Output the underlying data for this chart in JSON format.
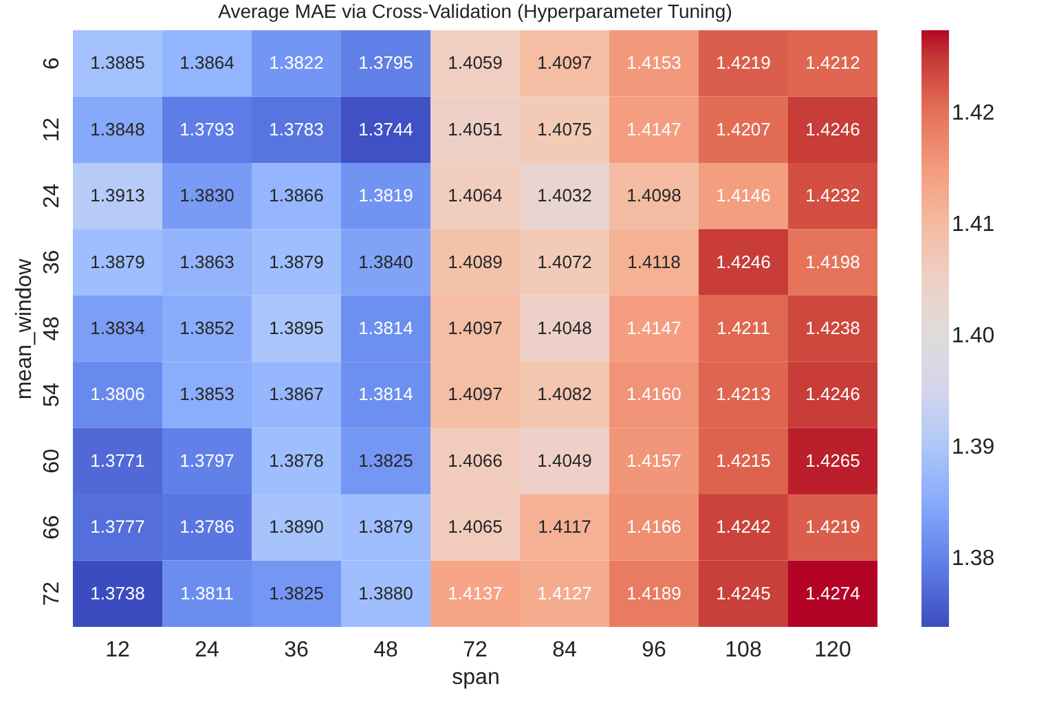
{
  "chart_data": {
    "type": "heatmap",
    "title": "Average MAE via Cross-Validation (Hyperparameter Tuning)",
    "xlabel": "span",
    "ylabel": "mean_window",
    "categories": [
      "12",
      "24",
      "36",
      "48",
      "72",
      "84",
      "96",
      "108",
      "120"
    ],
    "y_categories": [
      "6",
      "12",
      "24",
      "36",
      "48",
      "54",
      "60",
      "66",
      "72"
    ],
    "cells": [
      [
        1.3885,
        1.3864,
        1.3822,
        1.3795,
        1.4059,
        1.4097,
        1.4153,
        1.4219,
        1.4212
      ],
      [
        1.3848,
        1.3793,
        1.3783,
        1.3744,
        1.4051,
        1.4075,
        1.4147,
        1.4207,
        1.4246
      ],
      [
        1.3913,
        1.383,
        1.3866,
        1.3819,
        1.4064,
        1.4032,
        1.4098,
        1.4146,
        1.4232
      ],
      [
        1.3879,
        1.3863,
        1.3879,
        1.384,
        1.4089,
        1.4072,
        1.4118,
        1.4246,
        1.4198
      ],
      [
        1.3834,
        1.3852,
        1.3895,
        1.3814,
        1.4097,
        1.4048,
        1.4147,
        1.4211,
        1.4238
      ],
      [
        1.3806,
        1.3853,
        1.3867,
        1.3814,
        1.4097,
        1.4082,
        1.416,
        1.4213,
        1.4246
      ],
      [
        1.3771,
        1.3797,
        1.3878,
        1.3825,
        1.4066,
        1.4049,
        1.4157,
        1.4215,
        1.4265
      ],
      [
        1.3777,
        1.3786,
        1.389,
        1.3879,
        1.4065,
        1.4117,
        1.4166,
        1.4242,
        1.4219
      ],
      [
        1.3738,
        1.3811,
        1.3825,
        1.388,
        1.4137,
        1.4127,
        1.4189,
        1.4245,
        1.4274
      ]
    ],
    "cell_labels": [
      [
        "1.3885",
        "1.3864",
        "1.3822",
        "1.3795",
        "1.4059",
        "1.4097",
        "1.4153",
        "1.4219",
        "1.4212"
      ],
      [
        "1.3848",
        "1.3793",
        "1.3783",
        "1.3744",
        "1.4051",
        "1.4075",
        "1.4147",
        "1.4207",
        "1.4246"
      ],
      [
        "1.3913",
        "1.3830",
        "1.3866",
        "1.3819",
        "1.4064",
        "1.4032",
        "1.4098",
        "1.4146",
        "1.4232"
      ],
      [
        "1.3879",
        "1.3863",
        "1.3879",
        "1.3840",
        "1.4089",
        "1.4072",
        "1.4118",
        "1.4246",
        "1.4198"
      ],
      [
        "1.3834",
        "1.3852",
        "1.3895",
        "1.3814",
        "1.4097",
        "1.4048",
        "1.4147",
        "1.4211",
        "1.4238"
      ],
      [
        "1.3806",
        "1.3853",
        "1.3867",
        "1.3814",
        "1.4097",
        "1.4082",
        "1.4160",
        "1.4213",
        "1.4246"
      ],
      [
        "1.3771",
        "1.3797",
        "1.3878",
        "1.3825",
        "1.4066",
        "1.4049",
        "1.4157",
        "1.4215",
        "1.4265"
      ],
      [
        "1.3777",
        "1.3786",
        "1.3890",
        "1.3879",
        "1.4065",
        "1.4117",
        "1.4166",
        "1.4242",
        "1.4219"
      ],
      [
        "1.3738",
        "1.3811",
        "1.3825",
        "1.3880",
        "1.4137",
        "1.4127",
        "1.4189",
        "1.4245",
        "1.4274"
      ]
    ],
    "clim": [
      1.3738,
      1.4274
    ],
    "cticks": [
      1.38,
      1.39,
      {
        "value": 1.4,
        "label": "1.40"
      },
      1.41,
      1.42
    ]
  }
}
